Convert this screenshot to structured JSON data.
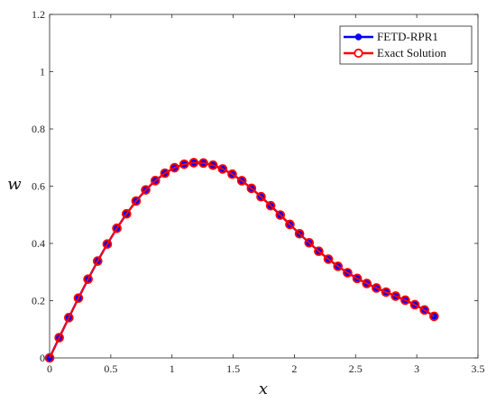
{
  "chart_data": {
    "type": "line",
    "title": "",
    "xlabel": "x",
    "ylabel": "w",
    "xlim": [
      0,
      3.5
    ],
    "ylim": [
      0,
      1.2
    ],
    "xticks": [
      "0",
      "0.5",
      "1",
      "1.5",
      "2",
      "2.5",
      "3",
      "3.5"
    ],
    "yticks": [
      "0",
      "0.2",
      "0.4",
      "0.6",
      "0.8",
      "1",
      "1.2"
    ],
    "grid": false,
    "legend_position": "top-right",
    "x": [
      0,
      0.0785,
      0.1571,
      0.2356,
      0.3142,
      0.3927,
      0.4712,
      0.5498,
      0.6283,
      0.7069,
      0.7854,
      0.8639,
      0.9425,
      1.021,
      1.0996,
      1.1781,
      1.2566,
      1.3352,
      1.4137,
      1.4923,
      1.5708,
      1.6493,
      1.7279,
      1.8064,
      1.885,
      1.9635,
      2.042,
      2.1206,
      2.1991,
      2.2777,
      2.3562,
      2.4347,
      2.5133,
      2.5918,
      2.6704,
      2.7489,
      2.8274,
      2.906,
      2.9845,
      3.0631,
      3.1416
    ],
    "series": [
      {
        "name": "FETD-RPR1",
        "color": "#0000ff",
        "marker": "filled-circle",
        "values": [
          0,
          0.0707,
          0.1406,
          0.209,
          0.2751,
          0.3383,
          0.3978,
          0.4529,
          0.5032,
          0.548,
          0.5869,
          0.6194,
          0.6453,
          0.6644,
          0.6766,
          0.682,
          0.6808,
          0.6733,
          0.6601,
          0.6418,
          0.619,
          0.5924,
          0.5631,
          0.5317,
          0.4991,
          0.4662,
          0.4337,
          0.4023,
          0.3726,
          0.3451,
          0.3201,
          0.2976,
          0.2777,
          0.26,
          0.2442,
          0.2298,
          0.2159,
          0.2017,
          0.1859,
          0.1674,
          0.1451
        ]
      },
      {
        "name": "Exact Solution",
        "color": "#ff0000",
        "marker": "open-circle",
        "values": [
          0,
          0.0707,
          0.1406,
          0.209,
          0.2751,
          0.3383,
          0.3978,
          0.4529,
          0.5032,
          0.548,
          0.5869,
          0.6194,
          0.6453,
          0.6644,
          0.6766,
          0.682,
          0.6808,
          0.6733,
          0.6601,
          0.6418,
          0.619,
          0.5924,
          0.5631,
          0.5317,
          0.4991,
          0.4662,
          0.4337,
          0.4023,
          0.3726,
          0.3451,
          0.3201,
          0.2976,
          0.2777,
          0.26,
          0.2442,
          0.2298,
          0.2159,
          0.2017,
          0.1859,
          0.1674,
          0.1451
        ]
      }
    ]
  }
}
